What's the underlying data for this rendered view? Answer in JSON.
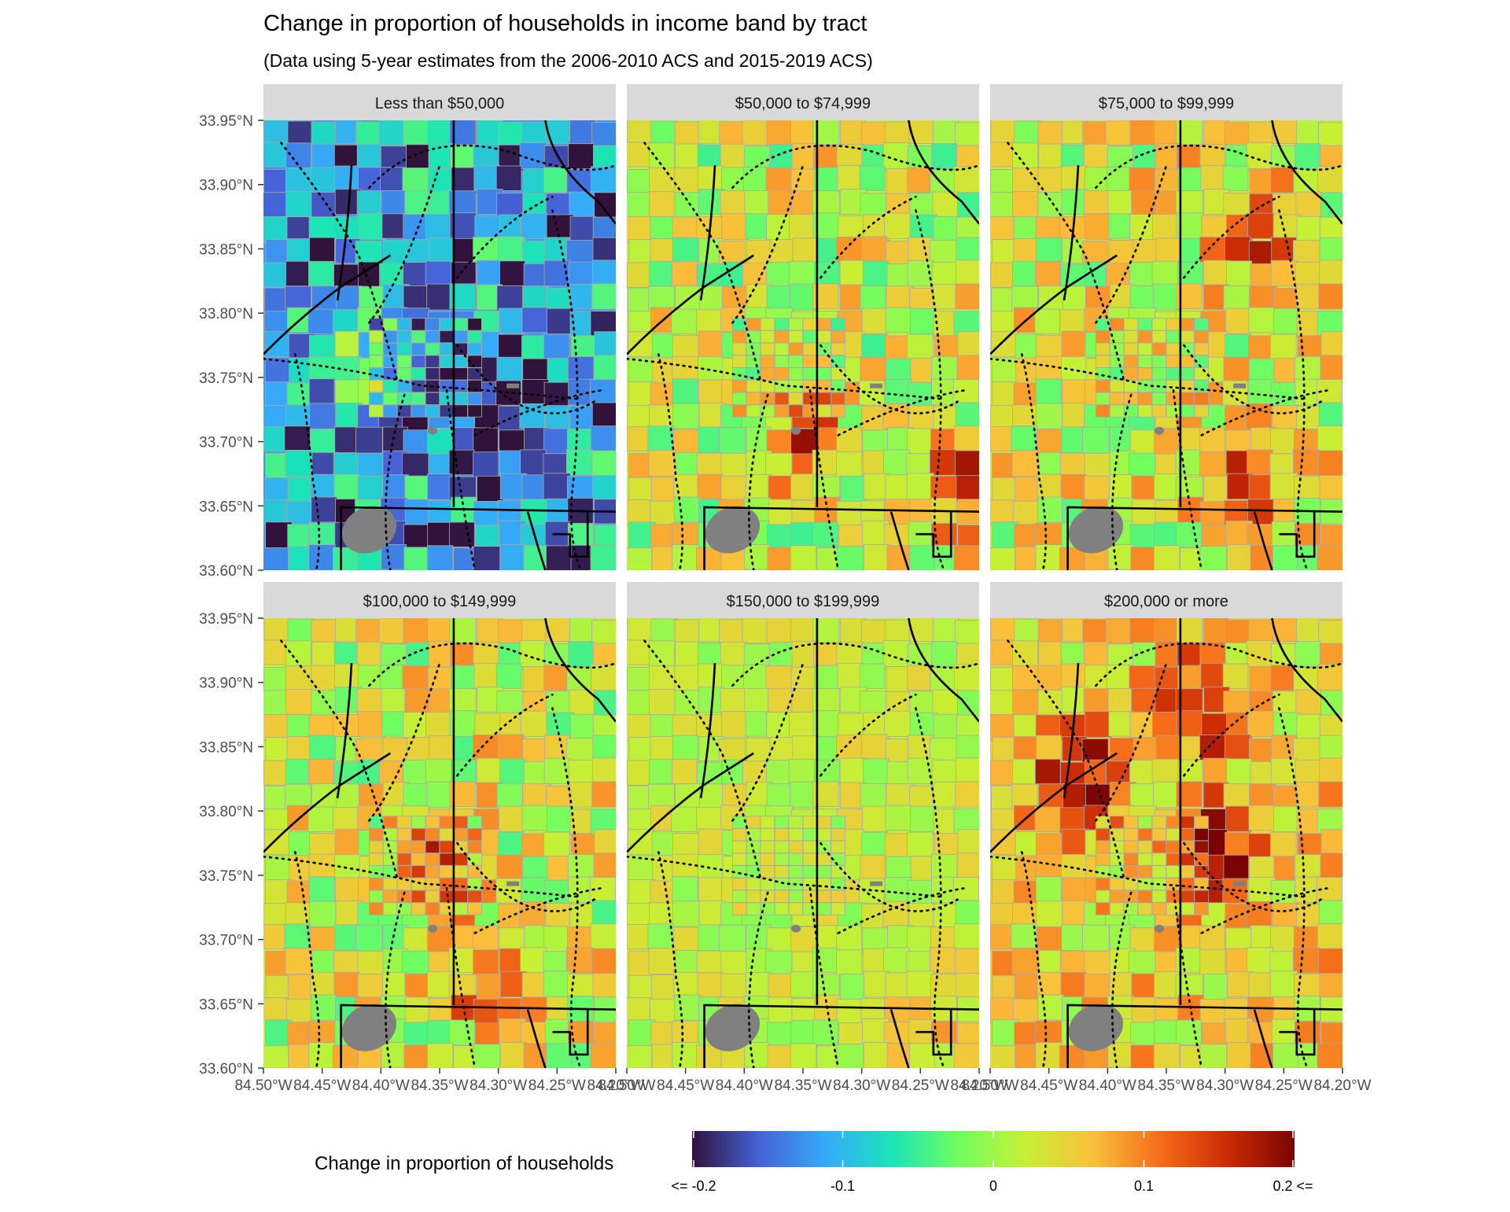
{
  "title": "Change in proportion of households in income band by tract",
  "subtitle": "(Data using 5-year estimates from the 2006-2010 ACS and 2015-2019 ACS)",
  "panels": [
    {
      "label": "Less than $50,000",
      "bias": -0.12,
      "spread": 0.09,
      "hot": [
        [
          0.65,
          0.64,
          -0.12
        ],
        [
          0.28,
          0.56,
          0.1
        ]
      ]
    },
    {
      "label": "$50,000 to $74,999",
      "bias": 0.02,
      "spread": 0.07,
      "hot": [
        [
          0.95,
          0.82,
          0.12
        ],
        [
          0.5,
          0.7,
          0.12
        ]
      ]
    },
    {
      "label": "$75,000 to $99,999",
      "bias": 0.03,
      "spread": 0.07,
      "hot": [
        [
          0.72,
          0.8,
          0.13
        ],
        [
          0.78,
          0.27,
          0.11
        ]
      ]
    },
    {
      "label": "$100,000 to $149,999",
      "bias": 0.025,
      "spread": 0.07,
      "hot": [
        [
          0.65,
          0.82,
          0.12
        ],
        [
          0.5,
          0.55,
          0.11
        ]
      ]
    },
    {
      "label": "$150,000 to $199,999",
      "bias": 0.02,
      "spread": 0.035,
      "hot": [
        [
          0.85,
          0.9,
          0.05
        ]
      ]
    },
    {
      "label": "$200,000 or more",
      "bias": 0.05,
      "spread": 0.06,
      "hot": [
        [
          0.25,
          0.35,
          0.16
        ],
        [
          0.65,
          0.52,
          0.14
        ],
        [
          0.6,
          0.2,
          0.12
        ]
      ]
    }
  ],
  "y_ticks": [
    "33.95°N",
    "33.90°N",
    "33.85°N",
    "33.80°N",
    "33.75°N",
    "33.70°N",
    "33.65°N",
    "33.60°N"
  ],
  "x_ticks": [
    "84.50°W",
    "84.45°W",
    "84.40°W",
    "84.35°W",
    "84.30°W",
    "84.25°W",
    "84.20°W"
  ],
  "legend": {
    "title": "Change in proportion of households",
    "tick_labels": [
      "<= -0.2",
      "-0.1",
      "0",
      "0.1",
      "0.2 <="
    ],
    "tick_values": [
      -0.2,
      -0.1,
      0,
      0.1,
      0.2
    ]
  },
  "colors": {
    "missing": "#808080",
    "strip": "#d9d9d9",
    "tract_border": "#a8a8a8",
    "scale": [
      "#30123b",
      "#4662d7",
      "#36aaf9",
      "#1ae4b6",
      "#72fe5e",
      "#c8ef34",
      "#fabf3a",
      "#f66b19",
      "#cb2a04",
      "#7a0403"
    ]
  }
}
